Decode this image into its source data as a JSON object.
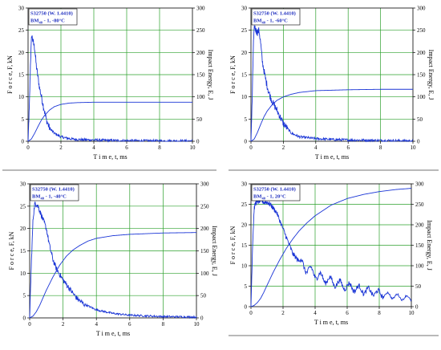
{
  "chart_data": [
    {
      "type": "line",
      "legend_line1": "S32750 (W. 1.4410)",
      "legend_line2": "BM",
      "legend_sub": "40",
      "legend_rest": " - 1,  -80°C",
      "xlabel": "T i m e,  t, ms",
      "ylabel": "F o r c e,  F, kN",
      "y2label": "Impact Energy,  E, J",
      "xlim": [
        0,
        10
      ],
      "ylim": [
        0,
        30
      ],
      "y2lim": [
        0,
        300
      ],
      "xticks": [
        0,
        2,
        4,
        6,
        8,
        10
      ],
      "yticks": [
        0,
        5,
        10,
        15,
        20,
        25,
        30
      ],
      "y2ticks": [
        0,
        50,
        100,
        150,
        200,
        250,
        300
      ],
      "grid": true,
      "legend_position": "top-left",
      "force_series": {
        "x": [
          0,
          0.08,
          0.15,
          0.22,
          0.3,
          0.4,
          0.5,
          0.7,
          0.9,
          1.1,
          1.3,
          1.6,
          2.0,
          2.5,
          3.0,
          4.0,
          5.0,
          6.0,
          8.0,
          10.0
        ],
        "y": [
          0,
          8,
          18,
          24,
          22.5,
          21,
          17,
          12,
          8.5,
          5,
          3,
          1.8,
          1.0,
          0.6,
          0.4,
          0.3,
          0.2,
          0.15,
          0.1,
          0.1
        ],
        "noise": 0.8
      },
      "energy_series": {
        "x": [
          0,
          0.2,
          0.4,
          0.6,
          0.8,
          1.0,
          1.3,
          1.6,
          2.0,
          2.5,
          3.0,
          4.0,
          6.0,
          8.0,
          10.0
        ],
        "y": [
          0,
          5,
          18,
          33,
          47,
          58,
          70,
          78,
          83,
          86,
          87,
          88,
          88,
          88,
          88
        ]
      }
    },
    {
      "type": "line",
      "legend_line1": "S32750 (W. 1.4410)",
      "legend_line2": "BM",
      "legend_sub": "40",
      "legend_rest": " - 1,  -60°C",
      "xlabel": "T i m e,  t, ms",
      "ylabel": "F o r c e,  F, kN",
      "y2label": "Impact Energy,  E, J",
      "xlim": [
        0,
        10
      ],
      "ylim": [
        0,
        30
      ],
      "y2lim": [
        0,
        300
      ],
      "xticks": [
        0,
        2,
        4,
        6,
        8,
        10
      ],
      "yticks": [
        0,
        5,
        10,
        15,
        20,
        25,
        30
      ],
      "y2ticks": [
        0,
        50,
        100,
        150,
        200,
        250,
        300
      ],
      "grid": true,
      "legend_position": "top-left",
      "force_series": {
        "x": [
          0,
          0.08,
          0.15,
          0.22,
          0.3,
          0.4,
          0.5,
          0.6,
          0.7,
          0.9,
          1.1,
          1.3,
          1.6,
          2.0,
          2.5,
          3.0,
          4.0,
          5.0,
          6.0,
          8.0,
          10.0
        ],
        "y": [
          0,
          10,
          22,
          26,
          25,
          24.5,
          25,
          22,
          18,
          14,
          11,
          9,
          7,
          4,
          1.8,
          1.0,
          0.6,
          0.4,
          0.3,
          0.2,
          0.1
        ],
        "noise": 0.8
      },
      "energy_series": {
        "x": [
          0,
          0.2,
          0.4,
          0.6,
          0.8,
          1.0,
          1.3,
          1.6,
          2.0,
          2.5,
          3.0,
          4.0,
          6.0,
          8.0,
          10.0
        ],
        "y": [
          0,
          5,
          20,
          38,
          55,
          68,
          82,
          92,
          100,
          106,
          110,
          114,
          116,
          117,
          117
        ]
      }
    },
    {
      "type": "line",
      "legend_line1": "S32750 (W. 1.4410)",
      "legend_line2": "BM",
      "legend_sub": "40",
      "legend_rest": " - 1,  -40°C",
      "xlabel": "T i m e,  t, ms",
      "ylabel": "F o r c e,  F, kN",
      "y2label": "Impact Energy,  E, J",
      "xlim": [
        0,
        10
      ],
      "ylim": [
        0,
        30
      ],
      "y2lim": [
        0,
        300
      ],
      "xticks": [
        0,
        2,
        4,
        6,
        8,
        10
      ],
      "yticks": [
        0,
        5,
        10,
        15,
        20,
        25,
        30
      ],
      "y2ticks": [
        0,
        50,
        100,
        150,
        200,
        250,
        300
      ],
      "grid": true,
      "legend_position": "top-left",
      "force_series": {
        "x": [
          0,
          0.1,
          0.2,
          0.3,
          0.4,
          0.5,
          0.6,
          0.8,
          1.0,
          1.2,
          1.4,
          1.6,
          2.0,
          2.4,
          2.8,
          3.2,
          3.6,
          4.0,
          5.0,
          6.0,
          8.0,
          10.0
        ],
        "y": [
          0,
          12,
          22,
          25.5,
          25.5,
          25,
          24,
          22,
          20,
          16,
          13,
          11,
          8.5,
          6.5,
          4.5,
          3.2,
          2.5,
          1.8,
          1.0,
          0.6,
          0.3,
          0.2
        ],
        "noise": 0.6
      },
      "energy_series": {
        "x": [
          0,
          0.2,
          0.4,
          0.6,
          0.8,
          1.0,
          1.4,
          1.8,
          2.2,
          2.6,
          3.0,
          3.5,
          4.0,
          5.0,
          6.0,
          8.0,
          10.0
        ],
        "y": [
          0,
          4,
          14,
          28,
          45,
          62,
          92,
          118,
          138,
          152,
          162,
          172,
          178,
          184,
          187,
          190,
          191
        ]
      }
    },
    {
      "type": "line",
      "legend_line1": "S32750 (W. 1.4410)",
      "legend_line2": "BM",
      "legend_sub": "40",
      "legend_rest": " - 1,  20°C",
      "xlabel": "T i m e,  t, ms",
      "ylabel": "F o r c e,  F, kN",
      "y2label": "Impact Energy,  E, J",
      "xlim": [
        0,
        10
      ],
      "ylim": [
        0,
        30
      ],
      "y2lim": [
        0,
        300
      ],
      "xticks": [
        0,
        2,
        4,
        6,
        8,
        10
      ],
      "yticks": [
        0,
        5,
        10,
        15,
        20,
        25,
        30
      ],
      "y2ticks": [
        0,
        50,
        100,
        150,
        200,
        250,
        300
      ],
      "grid": true,
      "legend_position": "top-left",
      "force_series": {
        "x": [
          0,
          0.1,
          0.2,
          0.3,
          0.4,
          0.6,
          0.8,
          1.0,
          1.2,
          1.4,
          1.6,
          1.8,
          2.0,
          2.3,
          2.6,
          3.0,
          3.4,
          3.8,
          4.2,
          4.6,
          5.0,
          5.5,
          6.0,
          6.5,
          7.0,
          7.5,
          8.0,
          8.5,
          9.0,
          9.5,
          10.0
        ],
        "y": [
          0,
          15,
          24,
          25.5,
          25.5,
          26,
          25.5,
          25.5,
          25,
          24,
          23,
          21,
          19,
          16,
          13,
          11,
          9.5,
          8.5,
          7.5,
          6.8,
          6.2,
          5.5,
          5.0,
          4.5,
          4.0,
          3.6,
          3.2,
          2.8,
          2.5,
          2.2,
          2.0
        ],
        "noise": 0.6,
        "wobble": 1.1
      },
      "energy_series": {
        "x": [
          0,
          0.2,
          0.4,
          0.6,
          0.8,
          1.0,
          1.4,
          1.8,
          2.2,
          2.6,
          3.0,
          3.5,
          4.0,
          5.0,
          6.0,
          7.0,
          8.0,
          9.0,
          10.0
        ],
        "y": [
          0,
          3,
          10,
          20,
          35,
          52,
          85,
          115,
          142,
          165,
          185,
          205,
          222,
          248,
          264,
          274,
          281,
          286,
          289
        ]
      }
    }
  ]
}
